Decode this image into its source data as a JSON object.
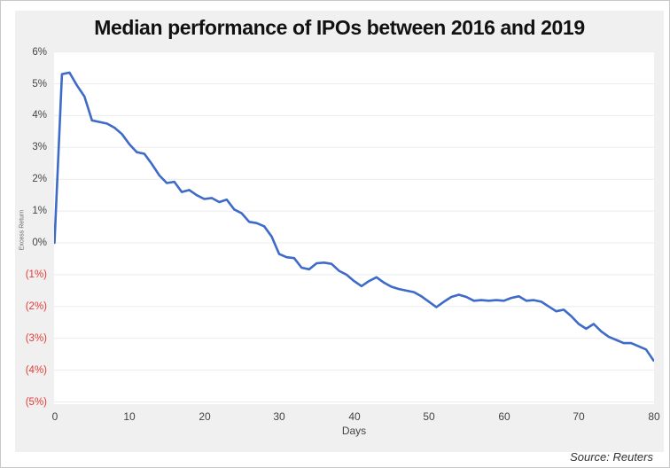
{
  "title": "Median performance of IPOs between 2016 and 2019",
  "source": "Source: Reuters",
  "colors": {
    "line": "#3e6bc7",
    "panel_background": "#f0f0f0",
    "plot_background": "#ffffff",
    "gridline": "#ebebeb",
    "tick_text": "#444444",
    "negative_tick_text": "#e23b36",
    "title_text": "#111111"
  },
  "chart_data": {
    "type": "line",
    "title": "Median performance of IPOs between 2016 and 2019",
    "xlabel": "Days",
    "ylabel": "Excess Return",
    "xlim": [
      0,
      80
    ],
    "ylim": [
      -5,
      6
    ],
    "grid": "horizontal",
    "legend": "none",
    "x_ticks": [
      0,
      10,
      20,
      30,
      40,
      50,
      60,
      70,
      80
    ],
    "y_ticks": [
      {
        "value": 6,
        "label": "6%",
        "negative": false
      },
      {
        "value": 5,
        "label": "5%",
        "negative": false
      },
      {
        "value": 4,
        "label": "4%",
        "negative": false
      },
      {
        "value": 3,
        "label": "3%",
        "negative": false
      },
      {
        "value": 2,
        "label": "2%",
        "negative": false
      },
      {
        "value": 1,
        "label": "1%",
        "negative": false
      },
      {
        "value": 0,
        "label": "0%",
        "negative": false
      },
      {
        "value": -1,
        "label": "(1%)",
        "negative": true
      },
      {
        "value": -2,
        "label": "(2%)",
        "negative": true
      },
      {
        "value": -3,
        "label": "(3%)",
        "negative": true
      },
      {
        "value": -4,
        "label": "(4%)",
        "negative": true
      },
      {
        "value": -5,
        "label": "(5%)",
        "negative": true
      }
    ],
    "series": [
      {
        "x": [
          0,
          1,
          2,
          3,
          4,
          5,
          6,
          7,
          8,
          9,
          10,
          11,
          12,
          13,
          14,
          15,
          16,
          17,
          18,
          19,
          20,
          21,
          22,
          23,
          24,
          25,
          26,
          27,
          28,
          29,
          30,
          31,
          32,
          33,
          34,
          35,
          36,
          37,
          38,
          39,
          40,
          41,
          42,
          43,
          44,
          45,
          46,
          47,
          48,
          49,
          50,
          51,
          52,
          53,
          54,
          55,
          56,
          57,
          58,
          59,
          60,
          61,
          62,
          63,
          64,
          65,
          66,
          67,
          68,
          69,
          70,
          71,
          72,
          73,
          74,
          75,
          76,
          77,
          78,
          79,
          80
        ],
        "y": [
          0.0,
          5.3,
          5.35,
          4.95,
          4.6,
          3.85,
          3.8,
          3.75,
          3.62,
          3.42,
          3.1,
          2.85,
          2.8,
          2.48,
          2.12,
          1.88,
          1.92,
          1.6,
          1.66,
          1.5,
          1.38,
          1.41,
          1.28,
          1.36,
          1.05,
          0.93,
          0.66,
          0.62,
          0.52,
          0.2,
          -0.35,
          -0.45,
          -0.48,
          -0.78,
          -0.83,
          -0.64,
          -0.62,
          -0.66,
          -0.88,
          -1.0,
          -1.2,
          -1.36,
          -1.2,
          -1.08,
          -1.25,
          -1.38,
          -1.45,
          -1.5,
          -1.55,
          -1.68,
          -1.85,
          -2.02,
          -1.85,
          -1.7,
          -1.63,
          -1.7,
          -1.82,
          -1.8,
          -1.82,
          -1.8,
          -1.82,
          -1.73,
          -1.68,
          -1.82,
          -1.8,
          -1.85,
          -2.0,
          -2.15,
          -2.1,
          -2.3,
          -2.55,
          -2.7,
          -2.55,
          -2.78,
          -2.95,
          -3.05,
          -3.15,
          -3.15,
          -3.25,
          -3.35,
          -3.7
        ]
      }
    ]
  }
}
